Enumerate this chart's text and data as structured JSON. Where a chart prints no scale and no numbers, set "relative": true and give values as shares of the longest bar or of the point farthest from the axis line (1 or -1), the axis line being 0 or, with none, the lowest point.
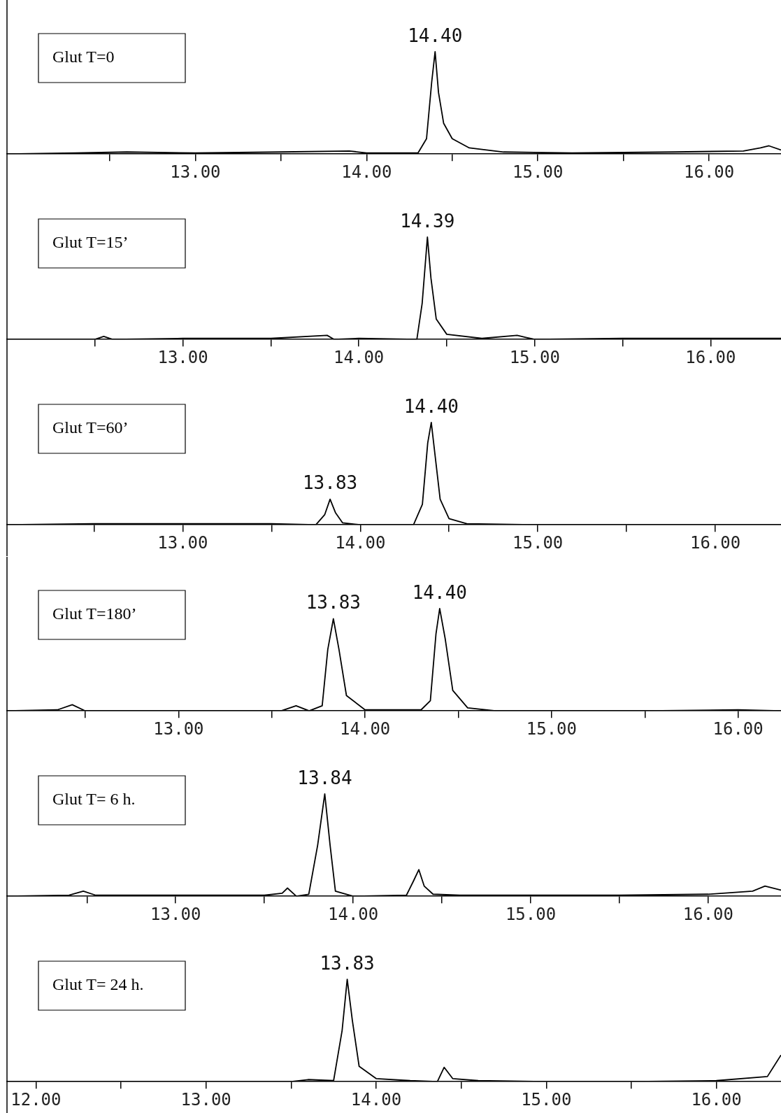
{
  "chart_data": [
    {
      "type": "line",
      "title": "Glut T=0",
      "relative": true,
      "xlim": [
        11.9,
        16.42
      ],
      "xticks": [
        {
          "value": 12.5,
          "label": null
        },
        {
          "value": 13,
          "label": "13.00"
        },
        {
          "value": 13.5,
          "label": null
        },
        {
          "value": 14,
          "label": "14.00"
        },
        {
          "value": 14.5,
          "label": null
        },
        {
          "value": 15,
          "label": "15.00"
        },
        {
          "value": 15.5,
          "label": null
        },
        {
          "value": 16,
          "label": "16.00"
        }
      ],
      "annotations": [
        {
          "text": "14.40",
          "x": 14.4,
          "y": 1
        }
      ],
      "series": [
        {
          "color": "#000000",
          "x": [
            11.9,
            12.3,
            12.6,
            13.0,
            13.5,
            13.9,
            14.0,
            14.3,
            14.35,
            14.38,
            14.4,
            14.42,
            14.45,
            14.5,
            14.6,
            14.8,
            15.2,
            15.8,
            16.2,
            16.3,
            16.35,
            16.42
          ],
          "values": [
            0,
            0.01,
            0.02,
            0.01,
            0.02,
            0.03,
            0.01,
            0.01,
            0.15,
            0.7,
            1,
            0.6,
            0.3,
            0.15,
            0.06,
            0.02,
            0.01,
            0.02,
            0.03,
            0.06,
            0.08,
            0.04
          ]
        }
      ]
    },
    {
      "type": "line",
      "title": "Glut T=15’",
      "relative": true,
      "xlim": [
        12.0,
        16.4
      ],
      "xticks": [
        {
          "value": 12.5,
          "label": null
        },
        {
          "value": 13,
          "label": "13.00"
        },
        {
          "value": 13.5,
          "label": null
        },
        {
          "value": 14,
          "label": "14.00"
        },
        {
          "value": 14.5,
          "label": null
        },
        {
          "value": 15,
          "label": "15.00"
        },
        {
          "value": 15.5,
          "label": null
        },
        {
          "value": 16,
          "label": "16.00"
        }
      ],
      "annotations": [
        {
          "text": "14.39",
          "x": 14.39,
          "y": 1
        }
      ],
      "series": [
        {
          "color": "#000000",
          "x": [
            12,
            12.5,
            12.55,
            12.6,
            13.0,
            13.5,
            13.82,
            13.86,
            14.0,
            14.33,
            14.36,
            14.39,
            14.41,
            14.44,
            14.5,
            14.7,
            14.9,
            14.95,
            15.0,
            15.5,
            16.0,
            16.4
          ],
          "values": [
            0,
            0,
            0.03,
            0,
            0.01,
            0.01,
            0.04,
            0,
            0.01,
            0,
            0.35,
            1,
            0.6,
            0.2,
            0.05,
            0.01,
            0.04,
            0.02,
            0,
            0.01,
            0.01,
            0.01
          ]
        }
      ]
    },
    {
      "type": "line",
      "title": "Glut T=60’",
      "relative": true,
      "xlim": [
        12.01,
        16.37
      ],
      "xticks": [
        {
          "value": 12.5,
          "label": null
        },
        {
          "value": 13,
          "label": "13.00"
        },
        {
          "value": 13.5,
          "label": null
        },
        {
          "value": 14,
          "label": "14.00"
        },
        {
          "value": 14.5,
          "label": null
        },
        {
          "value": 15,
          "label": "15.00"
        },
        {
          "value": 15.5,
          "label": null
        },
        {
          "value": 16,
          "label": "16.00"
        }
      ],
      "annotations": [
        {
          "text": "13.83",
          "x": 13.83,
          "y": 0.25
        },
        {
          "text": "14.40",
          "x": 14.4,
          "y": 1
        }
      ],
      "series": [
        {
          "color": "#000000",
          "x": [
            12.01,
            12.5,
            13.0,
            13.5,
            13.75,
            13.8,
            13.83,
            13.86,
            13.9,
            14.0,
            14.3,
            14.35,
            14.38,
            14.4,
            14.42,
            14.45,
            14.5,
            14.6,
            15.0,
            15.5,
            16.0,
            16.37
          ],
          "values": [
            0,
            0.01,
            0.01,
            0.01,
            0,
            0.1,
            0.25,
            0.12,
            0.02,
            0,
            0,
            0.2,
            0.8,
            1,
            0.7,
            0.25,
            0.06,
            0.01,
            0,
            0,
            0,
            0
          ]
        }
      ]
    },
    {
      "type": "line",
      "title": "Glut T=180’",
      "relative": true,
      "xlim": [
        12.08,
        16.23
      ],
      "xticks": [
        {
          "value": 12.5,
          "label": null
        },
        {
          "value": 13,
          "label": "13.00"
        },
        {
          "value": 13.5,
          "label": null
        },
        {
          "value": 14,
          "label": "14.00"
        },
        {
          "value": 14.5,
          "label": null
        },
        {
          "value": 15,
          "label": "15.00"
        },
        {
          "value": 15.5,
          "label": null
        },
        {
          "value": 16,
          "label": "16.00"
        }
      ],
      "annotations": [
        {
          "text": "13.83",
          "x": 13.83,
          "y": 0.9
        },
        {
          "text": "14.40",
          "x": 14.4,
          "y": 1
        }
      ],
      "series": [
        {
          "color": "#000000",
          "x": [
            12.08,
            12.35,
            12.43,
            12.5,
            13.0,
            13.55,
            13.63,
            13.7,
            13.77,
            13.8,
            13.83,
            13.86,
            13.9,
            14.0,
            14.3,
            14.35,
            14.38,
            14.4,
            14.43,
            14.47,
            14.55,
            14.7,
            15.5,
            16.0,
            16.23
          ],
          "values": [
            0,
            0.01,
            0.06,
            0,
            0,
            0,
            0.05,
            0,
            0.05,
            0.6,
            0.9,
            0.6,
            0.15,
            0.01,
            0.01,
            0.1,
            0.75,
            1,
            0.7,
            0.2,
            0.03,
            0,
            0,
            0.01,
            0
          ]
        }
      ]
    },
    {
      "type": "line",
      "title": "Glut T= 6 h.",
      "relative": true,
      "xlim": [
        12.05,
        16.41
      ],
      "xticks": [
        {
          "value": 12.5,
          "label": null
        },
        {
          "value": 13,
          "label": "13.00"
        },
        {
          "value": 13.5,
          "label": null
        },
        {
          "value": 14,
          "label": "14.00"
        },
        {
          "value": 14.5,
          "label": null
        },
        {
          "value": 15,
          "label": "15.00"
        },
        {
          "value": 15.5,
          "label": null
        },
        {
          "value": 16,
          "label": "16.00"
        }
      ],
      "annotations": [
        {
          "text": "13.84",
          "x": 13.84,
          "y": 1
        }
      ],
      "series": [
        {
          "color": "#000000",
          "x": [
            12.05,
            12.4,
            12.48,
            12.55,
            13.0,
            13.5,
            13.6,
            13.63,
            13.68,
            13.75,
            13.8,
            13.84,
            13.87,
            13.9,
            14.0,
            14.3,
            14.34,
            14.37,
            14.4,
            14.45,
            14.6,
            15.0,
            15.5,
            16.0,
            16.25,
            16.32,
            16.41
          ],
          "values": [
            0,
            0.01,
            0.05,
            0.01,
            0.01,
            0.01,
            0.03,
            0.08,
            0,
            0.02,
            0.5,
            1,
            0.5,
            0.05,
            0,
            0.01,
            0.15,
            0.26,
            0.1,
            0.02,
            0.01,
            0.01,
            0.01,
            0.02,
            0.05,
            0.1,
            0.06
          ]
        }
      ]
    },
    {
      "type": "line",
      "title": "Glut T= 24 h.",
      "relative": true,
      "xlim": [
        11.83,
        16.38
      ],
      "xticks": [
        {
          "value": 12,
          "label": "12.00"
        },
        {
          "value": 12.5,
          "label": null
        },
        {
          "value": 13,
          "label": "13.00"
        },
        {
          "value": 13.5,
          "label": null
        },
        {
          "value": 14,
          "label": "14.00"
        },
        {
          "value": 14.5,
          "label": null
        },
        {
          "value": 15,
          "label": "15.00"
        },
        {
          "value": 15.5,
          "label": null
        },
        {
          "value": 16,
          "label": "16.00"
        }
      ],
      "annotations": [
        {
          "text": "13.83",
          "x": 13.83,
          "y": 1
        }
      ],
      "series": [
        {
          "color": "#000000",
          "x": [
            11.83,
            12.5,
            13.0,
            13.5,
            13.6,
            13.75,
            13.8,
            13.83,
            13.86,
            13.9,
            14.0,
            14.2,
            14.36,
            14.4,
            14.45,
            14.6,
            15.0,
            15.5,
            16.0,
            16.3,
            16.38
          ],
          "values": [
            0,
            0,
            0,
            0,
            0.02,
            0.01,
            0.5,
            1,
            0.6,
            0.15,
            0.03,
            0.01,
            0,
            0.14,
            0.03,
            0.01,
            0,
            0,
            0.01,
            0.05,
            0.26
          ]
        }
      ]
    }
  ]
}
